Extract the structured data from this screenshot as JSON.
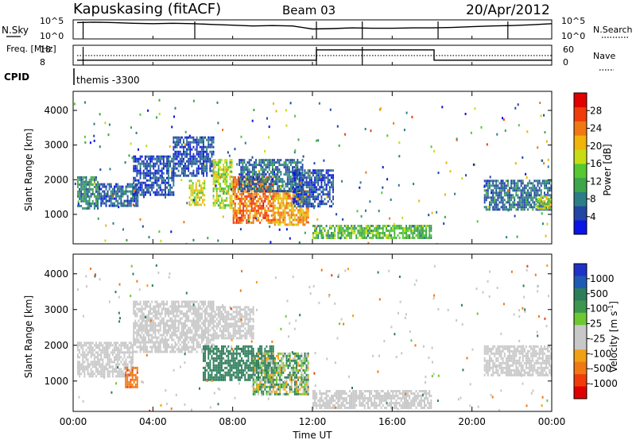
{
  "header": {
    "station": "Kapuskasing (fitACF)",
    "beam": "Beam 03",
    "date": "20/Apr/2012"
  },
  "colors": {
    "background": "#ffffff",
    "axis": "#000000",
    "ground_scatter": "#c8c8c8"
  },
  "chart_data": [
    {
      "type": "line",
      "panel": "noise",
      "left_label": "N.Sky",
      "right_label": "N.Search",
      "left_ticks": [
        "10^5",
        "10^0"
      ],
      "right_ticks": [
        "10^5",
        "10^0"
      ],
      "series": [
        {
          "name": "N.Sky",
          "x": [
            0.2,
            1,
            2,
            3,
            4,
            5,
            6,
            7,
            8,
            9,
            10,
            11,
            12,
            13,
            14,
            15,
            16,
            17,
            18,
            19,
            20,
            21,
            22,
            23,
            24
          ],
          "values": [
            4.3,
            4.4,
            4.3,
            4.1,
            4.0,
            4.1,
            4.0,
            3.8,
            3.6,
            3.4,
            3.5,
            3.4,
            2.6,
            2.7,
            2.9,
            2.8,
            2.8,
            2.9,
            2.9,
            3.0,
            3.2,
            3.4,
            3.5,
            3.7,
            4.0
          ]
        }
      ]
    },
    {
      "type": "line",
      "panel": "frequency",
      "left_label": "Freq. [MHz]",
      "right_label": "Nave",
      "left_ticks": [
        "18",
        "8"
      ],
      "right_ticks": [
        "60",
        "0"
      ],
      "series": [
        {
          "name": "Freq. [MHz]",
          "x": [
            0.2,
            12.2,
            12.2,
            18.1,
            18.1,
            24
          ],
          "values": [
            8.8,
            8.8,
            17.5,
            17.5,
            8.8,
            8.8
          ]
        },
        {
          "name": "Nave",
          "x": [
            0.2,
            24
          ],
          "values": [
            29,
            29
          ]
        }
      ]
    },
    {
      "type": "text",
      "panel": "cpid",
      "label": "CPID",
      "value": "themis -3300"
    },
    {
      "type": "heatmap",
      "panel": "power",
      "xlabel": "",
      "ylabel": "Slant Range [km]",
      "xlim": [
        0,
        24
      ],
      "ylim": [
        150,
        4550
      ],
      "y_ticks": [
        "1000",
        "2000",
        "3000",
        "4000"
      ],
      "colorbar_label": "Power [dB]",
      "colorbar_ticks": [
        "4",
        "8",
        "12",
        "16",
        "20",
        "24",
        "28"
      ],
      "colorbar_colors": [
        "#0a14e6",
        "#2346a5",
        "#2d7d87",
        "#3ea54b",
        "#55c832",
        "#c8dc14",
        "#f0b40a",
        "#f07814",
        "#f03c0a",
        "#e10000"
      ],
      "regions": [
        {
          "x0": 0.2,
          "x1": 1.2,
          "y0": 1150,
          "y1": 2100,
          "value": 9
        },
        {
          "x0": 1.2,
          "x1": 3.2,
          "y0": 1250,
          "y1": 1900,
          "value": 6
        },
        {
          "x0": 3.0,
          "x1": 5.0,
          "y0": 1600,
          "y1": 2700,
          "value": 5
        },
        {
          "x0": 5.0,
          "x1": 7.0,
          "y0": 2100,
          "y1": 3250,
          "value": 5
        },
        {
          "x0": 5.8,
          "x1": 6.6,
          "y0": 1300,
          "y1": 2000,
          "value": 18
        },
        {
          "x0": 7.0,
          "x1": 8.0,
          "y0": 1200,
          "y1": 2600,
          "value": 16
        },
        {
          "x0": 8.0,
          "x1": 10.0,
          "y0": 750,
          "y1": 2100,
          "value": 25
        },
        {
          "x0": 10.0,
          "x1": 11.8,
          "y0": 700,
          "y1": 1700,
          "value": 22
        },
        {
          "x0": 8.3,
          "x1": 11.5,
          "y0": 1700,
          "y1": 2600,
          "value": 7
        },
        {
          "x0": 11.0,
          "x1": 13.0,
          "y0": 1200,
          "y1": 2300,
          "value": 5
        },
        {
          "x0": 12.0,
          "x1": 18.0,
          "y0": 300,
          "y1": 700,
          "value": 13
        },
        {
          "x0": 20.6,
          "x1": 24.0,
          "y0": 1150,
          "y1": 2000,
          "value": 7
        },
        {
          "x0": 23.2,
          "x1": 24.0,
          "y0": 1150,
          "y1": 1550,
          "value": 17
        }
      ]
    },
    {
      "type": "heatmap",
      "panel": "velocity",
      "xlabel": "Time UT",
      "ylabel": "Slant Range [km]",
      "xlim": [
        0,
        24
      ],
      "ylim": [
        150,
        4550
      ],
      "x_ticks": [
        "00:00",
        "04:00",
        "08:00",
        "12:00",
        "16:00",
        "20:00",
        "00:00"
      ],
      "y_ticks": [
        "1000",
        "2000",
        "3000",
        "4000"
      ],
      "colorbar_label": "Velocity [m s",
      "colorbar_label_superscript": "-1",
      "colorbar_label_close": "]",
      "colorbar_ticks": [
        "1000",
        "500",
        "100",
        "25",
        "-25",
        "-100",
        "-500",
        "-1000"
      ],
      "colorbar_colors": [
        "#1e32c8",
        "#1e5ab4",
        "#2d7d5a",
        "#3c9650",
        "#6ec832",
        "#c8c8c8",
        "#c8c8c8",
        "#f0a014",
        "#f07814",
        "#f03c0a",
        "#e10000"
      ],
      "regions": [
        {
          "x0": 0.2,
          "x1": 3.0,
          "y0": 1150,
          "y1": 2100,
          "value": 0
        },
        {
          "x0": 2.6,
          "x1": 3.2,
          "y0": 850,
          "y1": 1400,
          "value": -400
        },
        {
          "x0": 3.0,
          "x1": 7.0,
          "y0": 1800,
          "y1": 3250,
          "value": 0
        },
        {
          "x0": 7.0,
          "x1": 9.0,
          "y0": 2200,
          "y1": 3100,
          "value": 0
        },
        {
          "x0": 6.5,
          "x1": 10.0,
          "y0": 1000,
          "y1": 2000,
          "value": 300
        },
        {
          "x0": 9.0,
          "x1": 11.8,
          "y0": 650,
          "y1": 1800,
          "value": 80
        },
        {
          "x0": 12.0,
          "x1": 18.0,
          "y0": 250,
          "y1": 750,
          "value": 0
        },
        {
          "x0": 20.6,
          "x1": 24.0,
          "y0": 1150,
          "y1": 2000,
          "value": 0
        }
      ]
    }
  ]
}
